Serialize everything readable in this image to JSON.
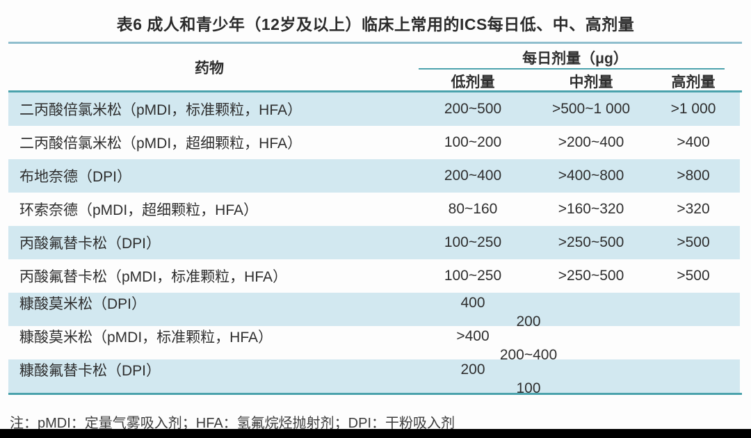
{
  "title": "表6 成人和青少年（12岁及以上）临床上常用的ICS每日低、中、高剂量",
  "table": {
    "drug_header": "药物",
    "dose_group_header": "每日剂量（μg）",
    "dose_columns": {
      "low": "低剂量",
      "mid": "中剂量",
      "high": "高剂量"
    },
    "rows": [
      {
        "drug": "二丙酸倍氯米松（pMDI，标准颗粒，HFA）",
        "low": "200~500",
        "mid": ">500~1 000",
        "high": ">1 000",
        "span": false
      },
      {
        "drug": "二丙酸倍氯米松（pMDI，超细颗粒，HFA）",
        "low": "100~200",
        "mid": ">200~400",
        "high": ">400",
        "span": false
      },
      {
        "drug": "布地奈德（DPI）",
        "low": "200~400",
        "mid": ">400~800",
        "high": ">800",
        "span": false
      },
      {
        "drug": "环索奈德（pMDI，超细颗粒，HFA）",
        "low": "80~160",
        "mid": ">160~320",
        "high": ">320",
        "span": false
      },
      {
        "drug": "丙酸氟替卡松（DPI）",
        "low": "100~250",
        "mid": ">250~500",
        "high": ">500",
        "span": false
      },
      {
        "drug": "丙酸氟替卡松（pMDI，标准颗粒，HFA）",
        "low": "100~250",
        "mid": ">250~500",
        "high": ">500",
        "span": false
      },
      {
        "drug": "糠酸莫米松（DPI）",
        "low_mid": "200",
        "high": "400",
        "span": true
      },
      {
        "drug": "糠酸莫米松（pMDI，标准颗粒，HFA）",
        "low_mid": "200~400",
        "high": ">400",
        "span": true
      },
      {
        "drug": "糠酸氟替卡松（DPI）",
        "low_mid": "100",
        "high": "200",
        "span": true
      }
    ]
  },
  "note": "注：pMDI：定量气雾吸入剂；HFA：氢氟烷烃抛射剂；DPI：干粉吸入剂",
  "colors": {
    "accent_rule": "#4ba2ac",
    "title_rule": "#8fbecd",
    "shaded_row": "#d2e8f0",
    "text": "#2e2e2e",
    "bottom_bar": "#000000"
  }
}
